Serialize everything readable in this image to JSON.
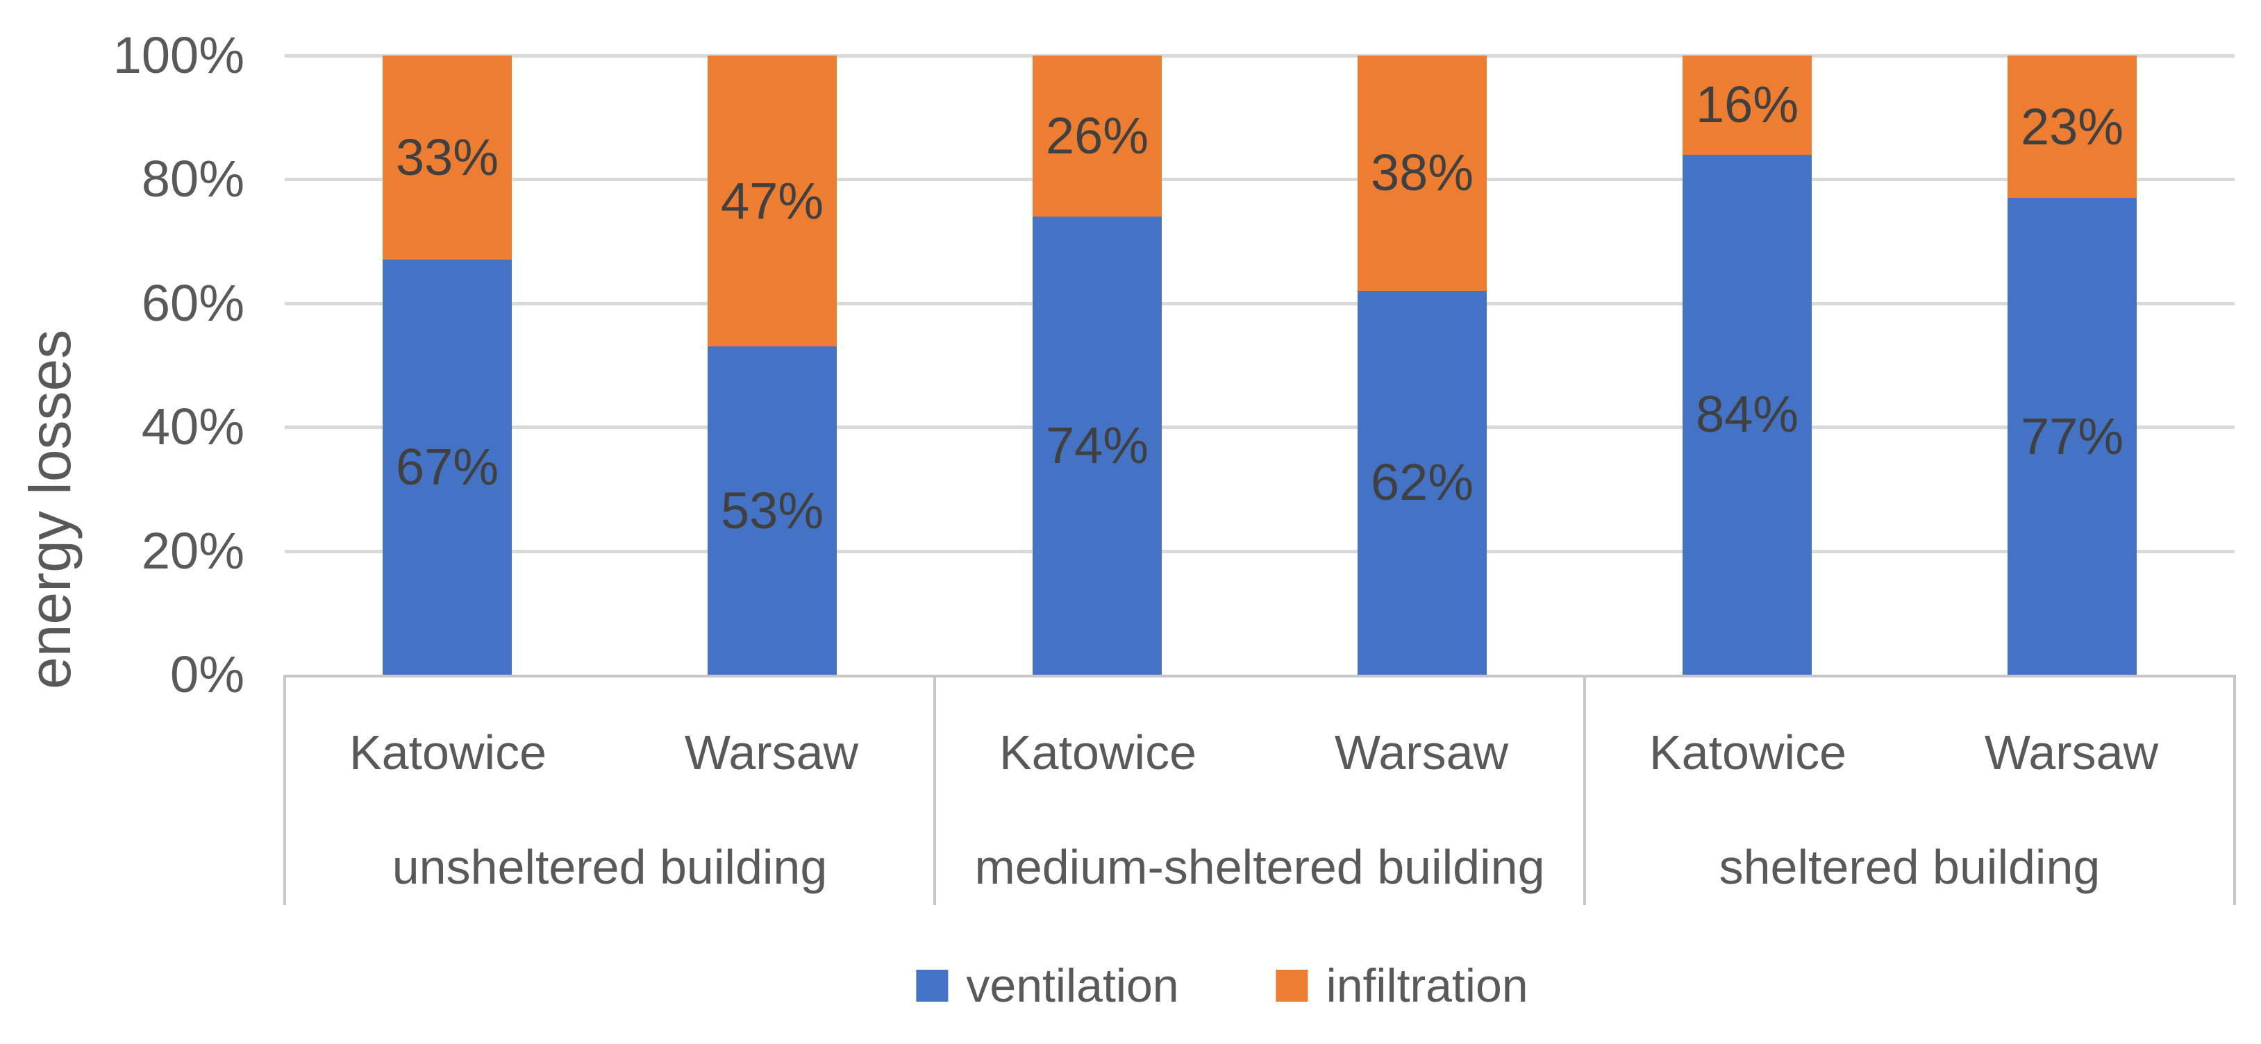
{
  "chart_data": {
    "type": "bar",
    "subtype": "stacked-100-percent-column",
    "title": "",
    "ylabel": "energy losses",
    "xlabel": "",
    "ylim": [
      0,
      100
    ],
    "y_ticks": [
      "0%",
      "20%",
      "40%",
      "60%",
      "80%",
      "100%"
    ],
    "grid": true,
    "legend_position": "bottom",
    "categories": [
      "Katowice",
      "Warsaw",
      "Katowice",
      "Warsaw",
      "Katowice",
      "Warsaw"
    ],
    "category_groups": [
      {
        "label": "unsheltered building",
        "span": 2
      },
      {
        "label": "medium-sheltered building",
        "span": 2
      },
      {
        "label": "sheltered building",
        "span": 2
      }
    ],
    "series": [
      {
        "name": "ventilation",
        "color": "#4472C4",
        "values": [
          67,
          53,
          74,
          62,
          84,
          77
        ],
        "labels": [
          "67%",
          "53%",
          "74%",
          "62%",
          "84%",
          "77%"
        ]
      },
      {
        "name": "infiltration",
        "color": "#ED7D31",
        "values": [
          33,
          47,
          26,
          38,
          16,
          23
        ],
        "labels": [
          "33%",
          "47%",
          "26%",
          "38%",
          "16%",
          "23%"
        ]
      }
    ]
  },
  "legend": {
    "items": [
      {
        "label": "ventilation",
        "color": "#4472C4"
      },
      {
        "label": "infiltration",
        "color": "#ED7D31"
      }
    ]
  },
  "colors": {
    "ventilation_blue": "#4472C4",
    "infiltration_orange": "#ED7D31",
    "axis_text": "#595959",
    "data_label_text": "#404040",
    "gridline": "#D9D9D9",
    "axis_line": "#C6C6C6",
    "background": "#FFFFFF"
  }
}
